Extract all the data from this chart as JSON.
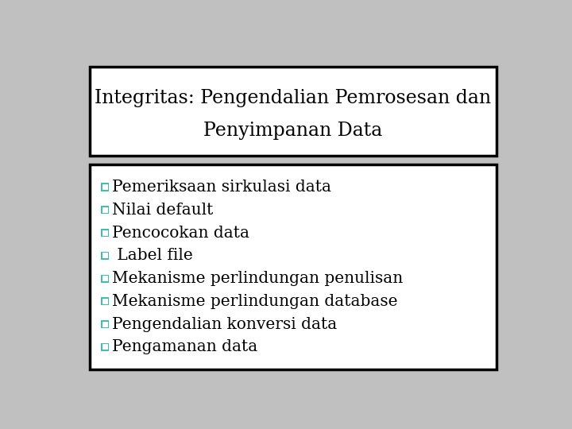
{
  "title_line1": "Integritas: Pengendalian Pemrosesan dan",
  "title_line2": "Penyimpanan Data",
  "bullet_items": [
    "Pemeriksaan sirkulasi data",
    "Nilai default",
    "Pencocokan data",
    " Label file",
    "Mekanisme perlindungan penulisan",
    "Mekanisme perlindungan database",
    "Pengendalian konversi data",
    "Pengamanan data"
  ],
  "background_color": "#c0c0c0",
  "title_box_bg": "#ffffff",
  "title_box_edge": "#000000",
  "bullet_box_bg": "#ffffff",
  "bullet_box_edge": "#000000",
  "bullet_color": "#3dbfb0",
  "text_color": "#000000",
  "title_fontsize": 17,
  "bullet_fontsize": 14.5
}
